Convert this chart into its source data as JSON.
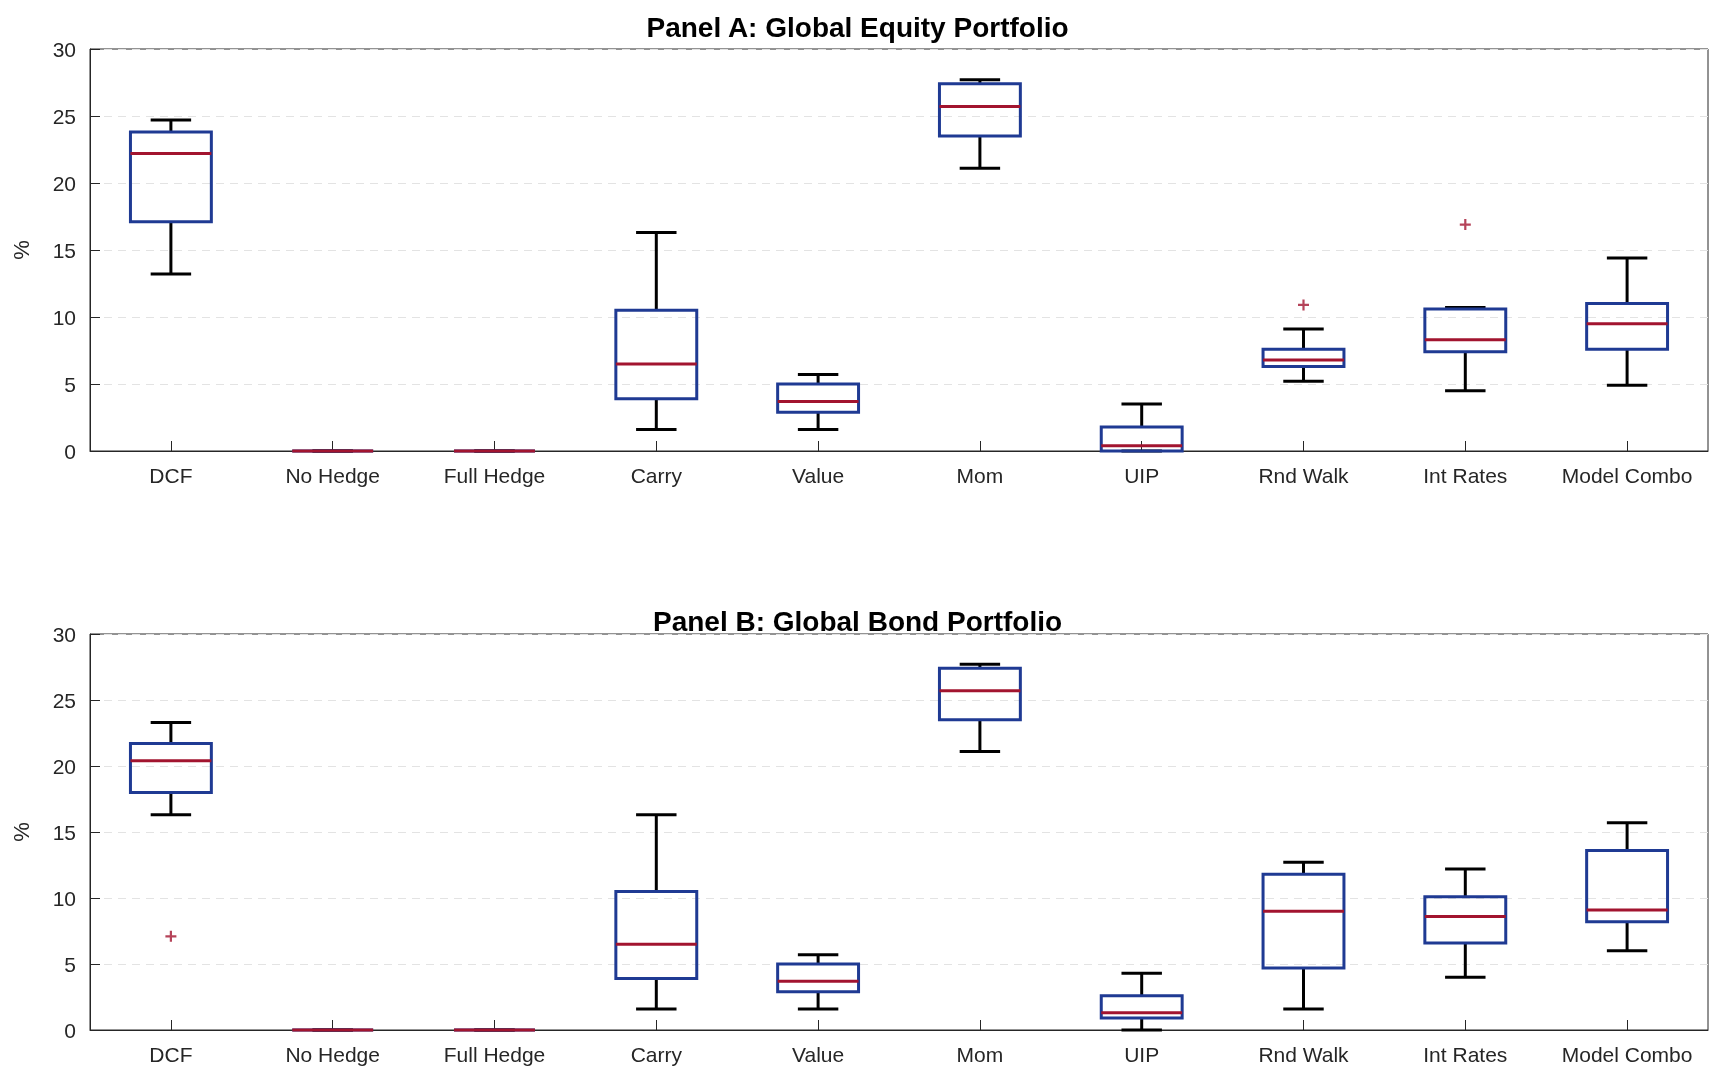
{
  "chart_data": [
    {
      "type": "box",
      "title": "Panel A: Global Equity Portfolio",
      "ylabel": "%",
      "categories": [
        "DCF",
        "No Hedge",
        "Full Hedge",
        "Carry",
        "Value",
        "Mom",
        "UIP",
        "Rnd Walk",
        "Int Rates",
        "Model Combo"
      ],
      "ylim": [
        0,
        30
      ],
      "yticks": [
        0,
        5,
        10,
        15,
        20,
        25,
        30
      ],
      "grid": "y",
      "series": [
        {
          "color": "#1f3a93",
          "boxes": [
            {
              "low": 13.2,
              "q1": 17.1,
              "median": 22.2,
              "q3": 23.8,
              "high": 24.7
            },
            {
              "low": 0,
              "q1": 0,
              "median": 0,
              "q3": 0,
              "high": 0
            },
            {
              "low": 0,
              "q1": 0,
              "median": 0,
              "q3": 0,
              "high": 0
            },
            {
              "low": 1.6,
              "q1": 3.9,
              "median": 6.5,
              "q3": 10.5,
              "high": 16.3
            },
            {
              "low": 1.6,
              "q1": 2.9,
              "median": 3.7,
              "q3": 5.0,
              "high": 5.7
            },
            {
              "low": 21.1,
              "q1": 23.5,
              "median": 25.7,
              "q3": 27.4,
              "high": 27.7
            },
            {
              "low": 0,
              "q1": 0,
              "median": 0.4,
              "q3": 1.8,
              "high": 3.5
            },
            {
              "low": 5.2,
              "q1": 6.3,
              "median": 6.8,
              "q3": 7.6,
              "high": 9.1,
              "outliers": [
                10.9
              ]
            },
            {
              "low": 4.5,
              "q1": 7.4,
              "median": 8.3,
              "q3": 10.6,
              "high": 10.7,
              "outliers": [
                16.9
              ]
            },
            {
              "low": 4.9,
              "q1": 7.6,
              "median": 9.5,
              "q3": 11.0,
              "high": 14.4
            }
          ]
        }
      ]
    },
    {
      "type": "box",
      "title": "Panel B: Global Bond Portfolio",
      "ylabel": "%",
      "categories": [
        "DCF",
        "No Hedge",
        "Full Hedge",
        "Carry",
        "Value",
        "Mom",
        "UIP",
        "Rnd Walk",
        "Int Rates",
        "Model Combo"
      ],
      "ylim": [
        0,
        30
      ],
      "yticks": [
        0,
        5,
        10,
        15,
        20,
        25,
        30
      ],
      "grid": "y",
      "series": [
        {
          "color": "#1f3a93",
          "boxes": [
            {
              "low": 16.3,
              "q1": 18.0,
              "median": 20.4,
              "q3": 21.7,
              "high": 23.3,
              "outliers": [
                7.1
              ]
            },
            {
              "low": 0,
              "q1": 0,
              "median": 0,
              "q3": 0,
              "high": 0
            },
            {
              "low": 0,
              "q1": 0,
              "median": 0,
              "q3": 0,
              "high": 0
            },
            {
              "low": 1.6,
              "q1": 3.9,
              "median": 6.5,
              "q3": 10.5,
              "high": 16.3
            },
            {
              "low": 1.6,
              "q1": 2.9,
              "median": 3.7,
              "q3": 5.0,
              "high": 5.7
            },
            {
              "low": 21.1,
              "q1": 23.5,
              "median": 25.7,
              "q3": 27.4,
              "high": 27.7
            },
            {
              "low": 0,
              "q1": 0.9,
              "median": 1.3,
              "q3": 2.6,
              "high": 4.3
            },
            {
              "low": 1.6,
              "q1": 4.7,
              "median": 9.0,
              "q3": 11.8,
              "high": 12.7
            },
            {
              "low": 4.0,
              "q1": 6.6,
              "median": 8.6,
              "q3": 10.1,
              "high": 12.2
            },
            {
              "low": 6.0,
              "q1": 8.2,
              "median": 9.1,
              "q3": 13.6,
              "high": 15.7
            }
          ]
        }
      ]
    }
  ]
}
